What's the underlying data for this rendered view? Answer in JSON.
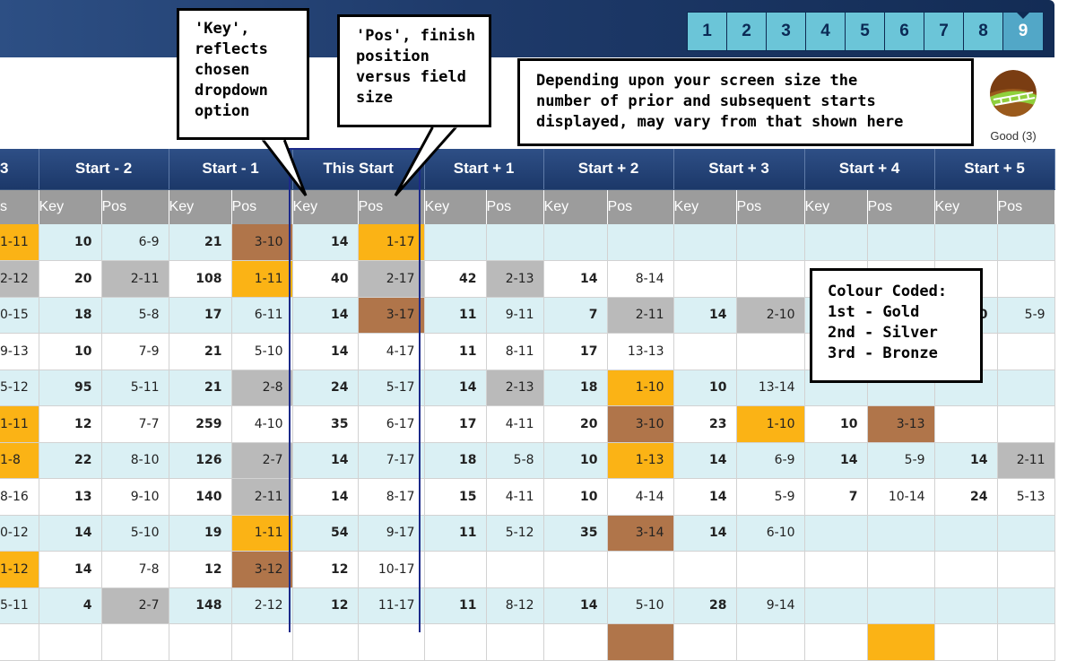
{
  "race_nav": [
    "1",
    "2",
    "3",
    "4",
    "5",
    "6",
    "7",
    "8",
    "9"
  ],
  "going": {
    "label": "Good (3)",
    "icon": "turf-going-icon"
  },
  "columns": {
    "start_headers": [
      "3",
      "Start - 2",
      "Start - 1",
      "This Start",
      "Start + 1",
      "Start + 2",
      "Start + 3",
      "Start + 4",
      "Start + 5"
    ],
    "sub_headers": [
      "s",
      "Key",
      "Pos",
      "Key",
      "Pos",
      "Key",
      "Pos",
      "Key",
      "Pos",
      "Key",
      "Pos",
      "Key",
      "Pos",
      "Key",
      "Pos",
      "Key",
      "Pos"
    ]
  },
  "rows": [
    [
      [
        "1-11",
        "gold"
      ],
      "10",
      "6-9",
      "21",
      [
        "3-10",
        "bronze"
      ],
      "14",
      [
        "1-17",
        "gold"
      ],
      "",
      "",
      "",
      "",
      "",
      "",
      "",
      "",
      "",
      ""
    ],
    [
      [
        "2-12",
        "silver"
      ],
      "20",
      [
        "2-11",
        "silver"
      ],
      "108",
      [
        "1-11",
        "gold"
      ],
      "40",
      [
        "2-17",
        "silver"
      ],
      "42",
      [
        "2-13",
        "silver"
      ],
      "14",
      "8-14",
      "",
      "",
      "",
      "",
      "",
      ""
    ],
    [
      [
        "0-15",
        ""
      ],
      "18",
      "5-8",
      "17",
      "6-11",
      "14",
      [
        "3-17",
        "bronze"
      ],
      "11",
      "9-11",
      "7",
      [
        "2-11",
        "silver"
      ],
      "14",
      [
        "2-10",
        "silver"
      ],
      "",
      "",
      "0",
      "5-9"
    ],
    [
      [
        "9-13",
        ""
      ],
      "10",
      "7-9",
      "21",
      "5-10",
      "14",
      "4-17",
      "11",
      "8-11",
      "17",
      "13-13",
      "",
      "",
      "",
      "",
      "",
      ""
    ],
    [
      [
        "5-12",
        ""
      ],
      "95",
      "5-11",
      "21",
      [
        "2-8",
        "silver"
      ],
      "24",
      "5-17",
      "14",
      [
        "2-13",
        "silver"
      ],
      "18",
      [
        "1-10",
        "gold"
      ],
      "10",
      "13-14",
      "",
      "",
      "",
      ""
    ],
    [
      [
        "1-11",
        "gold"
      ],
      "12",
      "7-7",
      "259",
      "4-10",
      "35",
      "6-17",
      "17",
      "4-11",
      "20",
      [
        "3-10",
        "bronze"
      ],
      "23",
      [
        "1-10",
        "gold"
      ],
      "10",
      [
        "3-13",
        "bronze"
      ],
      "",
      ""
    ],
    [
      [
        "1-8",
        "gold"
      ],
      "22",
      "8-10",
      "126",
      [
        "2-7",
        "silver"
      ],
      "14",
      "7-17",
      "18",
      "5-8",
      "10",
      [
        "1-13",
        "gold"
      ],
      "14",
      "6-9",
      "14",
      "5-9",
      "14",
      [
        "2-11",
        "silver"
      ]
    ],
    [
      [
        "8-16",
        ""
      ],
      "13",
      "9-10",
      "140",
      [
        "2-11",
        "silver"
      ],
      "14",
      "8-17",
      "15",
      "4-11",
      "10",
      "4-14",
      "14",
      "5-9",
      "7",
      "10-14",
      "24",
      "5-13"
    ],
    [
      [
        "0-12",
        ""
      ],
      "14",
      "5-10",
      "19",
      [
        "1-11",
        "gold"
      ],
      "54",
      "9-17",
      "11",
      "5-12",
      "35",
      [
        "3-14",
        "bronze"
      ],
      "14",
      "6-10",
      "",
      "",
      "",
      ""
    ],
    [
      [
        "1-12",
        "gold"
      ],
      "14",
      "7-8",
      "12",
      [
        "3-12",
        "bronze"
      ],
      "12",
      "10-17",
      "",
      "",
      "",
      "",
      "",
      "",
      "",
      "",
      "",
      ""
    ],
    [
      [
        "5-11",
        ""
      ],
      "4",
      [
        "2-7",
        "silver"
      ],
      "148",
      "2-12",
      "12",
      "11-17",
      "11",
      "8-12",
      "14",
      "5-10",
      "28",
      "9-14",
      "",
      "",
      "",
      ""
    ],
    [
      [
        "",
        ""
      ],
      "",
      "",
      "",
      "",
      "",
      "",
      "",
      "",
      "",
      [
        "",
        "bronze"
      ],
      "",
      "",
      "",
      [
        "",
        "gold"
      ],
      "",
      ""
    ]
  ],
  "callouts": {
    "key": [
      "'Key',",
      "reflects",
      "chosen",
      "dropdown",
      "option"
    ],
    "pos": [
      "'Pos', finish",
      "position",
      "versus field",
      "size"
    ],
    "screen": [
      "Depending upon your screen size the",
      "number of prior and subsequent starts",
      "displayed, may vary from that shown here"
    ],
    "colour": [
      "Colour Coded:",
      "1st - Gold",
      "2nd - Silver",
      "3rd - Bronze"
    ]
  },
  "colors": {
    "gold": "#fbb315",
    "silver": "#bababa",
    "bronze": "#b0754a",
    "header_navy": "#1c3869",
    "row_tint": "#daf0f4",
    "tab": "#6bc5d8"
  }
}
